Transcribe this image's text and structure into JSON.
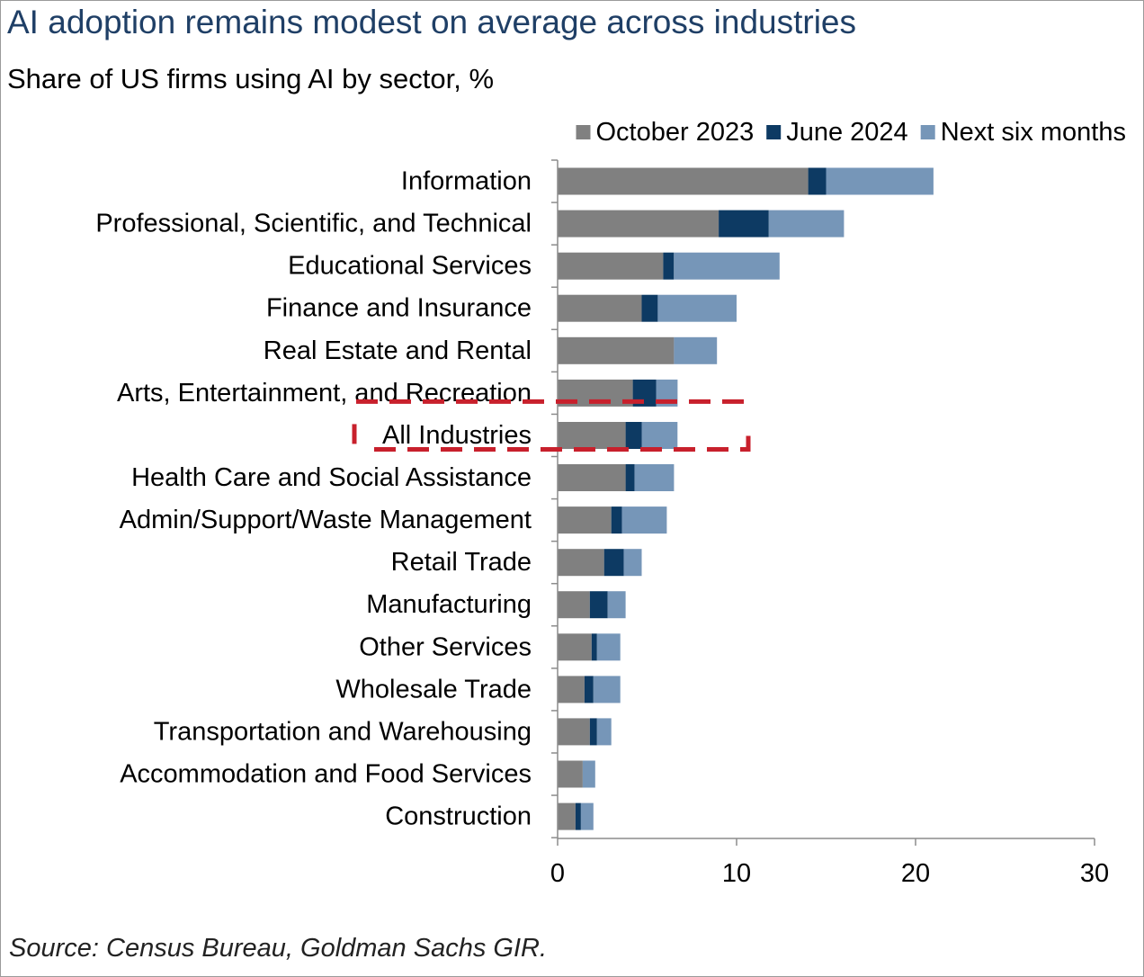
{
  "title": "AI adoption remains modest on average across industries",
  "subtitle": "Share of US firms using AI by sector, %",
  "source": "Source: Census Bureau, Goldman Sachs GIR.",
  "colors": {
    "october_2023": "#808080",
    "june_2024": "#0d3a63",
    "next_six_months": "#7696b8",
    "highlight": "#c8202c",
    "axis": "#8c8c8c",
    "title": "#1f3f66"
  },
  "chart_data": {
    "type": "bar",
    "orientation": "horizontal",
    "stacked": true,
    "categories": [
      "Information",
      "Professional, Scientific, and Technical",
      "Educational Services",
      "Finance and Insurance",
      "Real Estate and Rental",
      "Arts, Entertainment, and Recreation",
      "All Industries",
      "Health Care and Social Assistance",
      "Admin/Support/Waste Management",
      "Retail Trade",
      "Manufacturing",
      "Other Services",
      "Wholesale Trade",
      "Transportation and Warehousing",
      "Accommodation and Food Services",
      "Construction"
    ],
    "series": [
      {
        "name": "October 2023",
        "color": "#808080",
        "values": [
          14.0,
          9.0,
          5.9,
          4.7,
          6.5,
          4.2,
          3.8,
          3.8,
          3.0,
          2.6,
          1.8,
          1.9,
          1.5,
          1.8,
          1.4,
          1.0
        ]
      },
      {
        "name": "June 2024",
        "color": "#0d3a63",
        "values": [
          1.0,
          2.8,
          0.6,
          0.9,
          0.0,
          1.3,
          0.9,
          0.5,
          0.6,
          1.1,
          1.0,
          0.3,
          0.5,
          0.4,
          0.0,
          0.3
        ]
      },
      {
        "name": "Next six months",
        "color": "#7696b8",
        "values": [
          6.0,
          4.2,
          5.9,
          4.4,
          2.4,
          1.2,
          2.0,
          2.2,
          2.5,
          1.0,
          1.0,
          1.3,
          1.5,
          0.8,
          0.7,
          0.7
        ]
      }
    ],
    "xlim": [
      0,
      30
    ],
    "xticks": [
      0,
      10,
      20,
      30
    ],
    "legend_position": "top-right",
    "grid": false,
    "highlighted_category": "All Industries"
  }
}
